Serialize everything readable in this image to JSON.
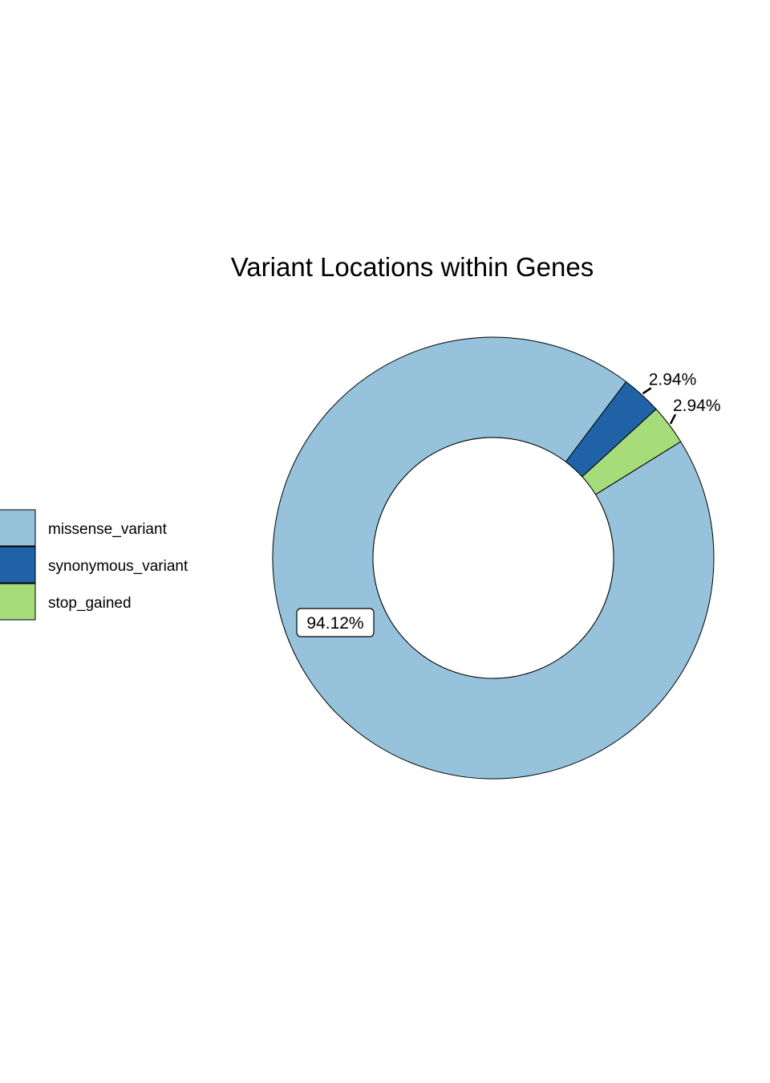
{
  "chart_data": {
    "type": "pie",
    "donut": true,
    "title": "Variant Locations within Genes",
    "legend_position": "left",
    "grid": false,
    "slices": [
      {
        "name": "missense_variant",
        "value": 94.12,
        "label": "94.12%",
        "color": "#97C2DB"
      },
      {
        "name": "synonymous_variant",
        "value": 2.94,
        "label": "2.94%",
        "color": "#1F62A6"
      },
      {
        "name": "stop_gained",
        "value": 2.94,
        "label": "2.94%",
        "color": "#A6DC79"
      }
    ]
  }
}
